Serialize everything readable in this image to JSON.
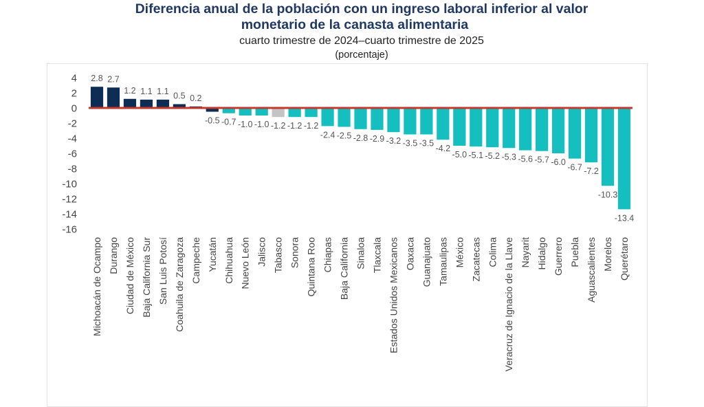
{
  "chart_data": {
    "type": "bar",
    "title": "Diferencia anual de la población con un ingreso laboral inferior al valor monetario de la canasta alimentaria",
    "title_lines": [
      "Diferencia anual de la población con un ingreso laboral inferior al valor",
      "monetario de la canasta alimentaria"
    ],
    "subtitle": "cuarto trimestre de 2024–cuarto trimestre de 2025",
    "units": "(porcentaje)",
    "xlabel": "",
    "ylabel": "",
    "ylim": [
      -16,
      4
    ],
    "yticks": [
      4,
      2,
      0,
      -2,
      -4,
      -6,
      -8,
      -10,
      -12,
      -14,
      -16
    ],
    "grid": false,
    "legend": "none",
    "categories": [
      "Michoacán de Ocampo",
      "Durango",
      "Ciudad de México",
      "Baja California Sur",
      "San Luis Potosí",
      "Coahuila de Zaragoza",
      "Campeche",
      "Yucatán",
      "Chihuahua",
      "Nuevo León",
      "Jalisco",
      "Tabasco",
      "Sonora",
      "Quintana Roo",
      "Chiapas",
      "Baja California",
      "Sinaloa",
      "Tlaxcala",
      "Estados Unidos Mexicanos",
      "Oaxaca",
      "Guanajuato",
      "Tamaulipas",
      "México",
      "Zacatecas",
      "Colima",
      "Veracruz de Ignacio de la Llave",
      "Nayarit",
      "Hidalgo",
      "Guerrero",
      "Puebla",
      "Aguascalientes",
      "Morelos",
      "Querétaro"
    ],
    "values": [
      2.8,
      2.7,
      1.2,
      1.1,
      1.1,
      0.5,
      0.2,
      -0.5,
      -0.7,
      -1.0,
      -1.0,
      -1.2,
      -1.2,
      -1.2,
      -2.4,
      -2.5,
      -2.8,
      -2.9,
      -3.2,
      -3.5,
      -3.5,
      -4.2,
      -5.0,
      -5.1,
      -5.2,
      -5.3,
      -5.6,
      -5.7,
      -6.0,
      -6.7,
      -7.2,
      -10.3,
      -13.4
    ],
    "value_labels": [
      "2.8",
      "2.7",
      "1.2",
      "1.1",
      "1.1",
      "0.5",
      "0.2",
      "-0.5",
      "-0.7",
      "-1.0",
      "-1.0",
      "-1.2",
      "-1.2",
      "-1.2",
      "-2.4",
      "-2.5",
      "-2.8",
      "-2.9",
      "-3.2",
      "-3.5",
      "-3.5",
      "-4.2",
      "-5.0",
      "-5.1",
      "-5.2",
      "-5.3",
      "-5.6",
      "-5.7",
      "-6.0",
      "-6.7",
      "-7.2",
      "-10.3",
      "-13.4"
    ],
    "bar_groups": [
      "increase",
      "increase",
      "increase",
      "increase",
      "increase",
      "increase",
      "increase",
      "decrease-significant-navy",
      "decrease",
      "decrease",
      "decrease",
      "not-significant",
      "decrease",
      "decrease",
      "decrease",
      "decrease",
      "decrease",
      "decrease",
      "decrease",
      "decrease",
      "decrease",
      "decrease",
      "decrease",
      "decrease",
      "decrease",
      "decrease",
      "decrease",
      "decrease",
      "decrease",
      "decrease",
      "decrease",
      "decrease",
      "decrease"
    ],
    "colors": {
      "increase": "#0d2d54",
      "decrease-significant-navy": "#0d2d54",
      "decrease": "#16bfbf",
      "not-significant": "#c4c4c4",
      "zero_line": "#c0392b",
      "title": "#1f3864",
      "text": "#555555"
    }
  }
}
